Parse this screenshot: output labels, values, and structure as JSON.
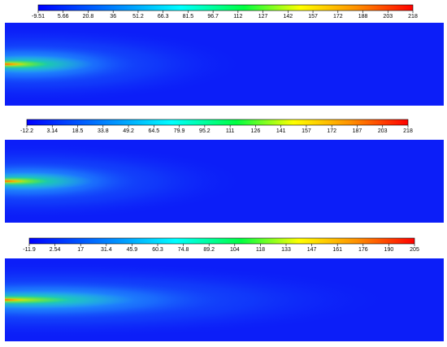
{
  "panels": [
    {
      "colorbar": {
        "ticks": [
          -9.51,
          5.66,
          20.8,
          36,
          51.2,
          66.3,
          81.5,
          96.7,
          112,
          127,
          142,
          157,
          172,
          188,
          203,
          218
        ]
      }
    },
    {
      "colorbar": {
        "ticks": [
          -12.2,
          3.14,
          18.5,
          33.8,
          49.2,
          64.5,
          79.9,
          95.2,
          111,
          126,
          141,
          157,
          172,
          187,
          203,
          218
        ]
      }
    },
    {
      "colorbar": {
        "ticks": [
          -11.9,
          2.54,
          17,
          31.4,
          45.9,
          60.3,
          74.8,
          89.2,
          104,
          118,
          133,
          147,
          161,
          176,
          190,
          205
        ]
      }
    }
  ]
}
